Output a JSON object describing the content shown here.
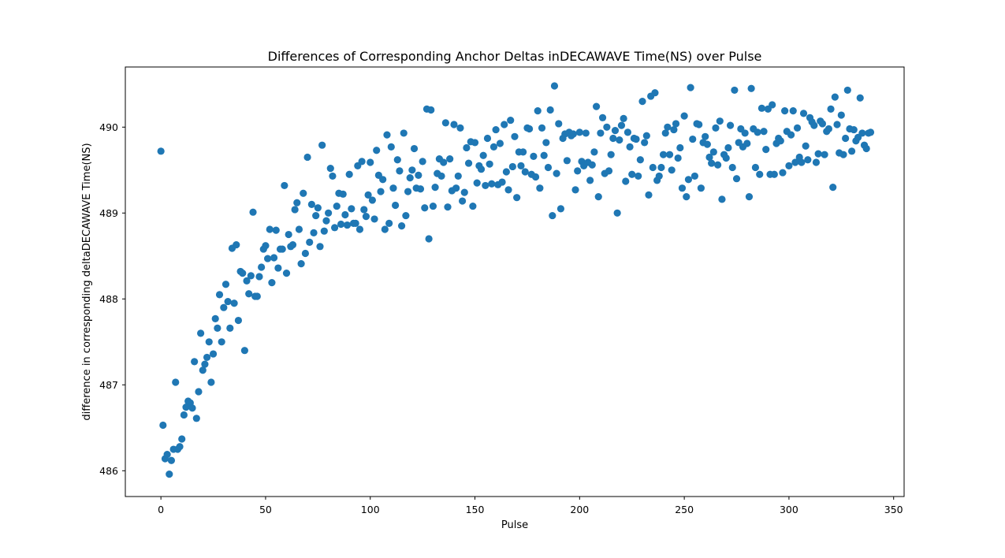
{
  "chart_data": {
    "type": "scatter",
    "title": "Differences of Corresponding Anchor Deltas inDECAWAVE Time(NS) over Pulse",
    "xlabel": "Pulse",
    "ylabel": "difference in corresponding deltaDECAWAVE Time(NS)",
    "xlim": [
      -17,
      355
    ],
    "ylim": [
      485.7,
      490.7
    ],
    "xticks": [
      0,
      50,
      100,
      150,
      200,
      250,
      300,
      350
    ],
    "yticks": [
      486,
      487,
      488,
      489,
      490
    ],
    "xtick_labels": [
      "0",
      "50",
      "100",
      "150",
      "200",
      "250",
      "300",
      "350"
    ],
    "ytick_labels": [
      "486",
      "487",
      "488",
      "489",
      "490"
    ],
    "grid": false,
    "legend": "none",
    "marker_color": "#1f77b4",
    "series": [
      {
        "x": [
          0,
          1,
          2,
          3,
          4,
          5,
          6,
          7,
          8,
          9,
          10,
          11,
          12,
          13,
          14,
          15,
          16,
          17,
          18,
          19,
          20,
          21,
          22,
          23,
          24,
          25,
          26,
          27,
          28,
          29,
          30,
          31,
          32,
          33,
          34,
          35,
          36,
          37,
          38,
          39,
          40,
          41,
          42,
          43,
          44,
          45,
          46,
          47,
          48,
          49,
          50,
          51,
          52,
          53,
          54,
          55,
          56,
          57,
          58,
          59,
          60,
          61,
          62,
          63,
          64,
          65,
          66,
          67,
          68,
          69,
          70,
          71,
          72,
          73,
          74,
          75,
          76,
          77,
          78,
          79,
          80,
          81,
          82,
          83,
          84,
          85,
          86,
          87,
          88,
          89,
          90,
          91,
          92,
          93,
          94,
          95,
          96,
          97,
          98,
          99,
          100,
          101,
          102,
          103,
          104,
          105,
          106,
          107,
          108,
          109,
          110,
          111,
          112,
          113,
          114,
          115,
          116,
          117,
          118,
          119,
          120,
          121,
          122,
          123,
          124,
          125,
          126,
          127,
          128,
          129,
          130,
          131,
          132,
          133,
          134,
          135,
          136,
          137,
          138,
          139,
          140,
          141,
          142,
          143,
          144,
          145,
          146,
          147,
          148,
          149,
          150,
          151,
          152,
          153,
          154,
          155,
          156,
          157,
          158,
          159,
          160,
          161,
          162,
          163,
          164,
          165,
          166,
          167,
          168,
          169,
          170,
          171,
          172,
          173,
          174,
          175,
          176,
          177,
          178,
          179,
          180,
          181,
          182,
          183,
          184,
          185,
          186,
          187,
          188,
          189,
          190,
          191,
          192,
          193,
          194,
          195,
          196,
          197,
          198,
          199,
          200,
          201,
          202,
          203,
          204,
          205,
          206,
          207,
          208,
          209,
          210,
          211,
          212,
          213,
          214,
          215,
          216,
          217,
          218,
          219,
          220,
          221,
          222,
          223,
          224,
          225,
          226,
          227,
          228,
          229,
          230,
          231,
          232,
          233,
          234,
          235,
          236,
          237,
          238,
          239,
          240,
          241,
          242,
          243,
          244,
          245,
          246,
          247,
          248,
          249,
          250,
          251,
          252,
          253,
          254,
          255,
          256,
          257,
          258,
          259,
          260,
          261,
          262,
          263,
          264,
          265,
          266,
          267,
          268,
          269,
          270,
          271,
          272,
          273,
          274,
          275,
          276,
          277,
          278,
          279,
          280,
          281,
          282,
          283,
          284,
          285,
          286,
          287,
          288,
          289,
          290,
          291,
          292,
          293,
          294,
          295,
          296,
          297,
          298,
          299,
          300,
          301,
          302,
          303,
          304,
          305,
          306,
          307,
          308,
          309,
          310,
          311,
          312,
          313,
          314,
          315,
          316,
          317,
          318,
          319,
          320,
          321,
          322,
          323,
          324,
          325,
          326,
          327,
          328,
          329,
          330,
          331,
          332,
          333,
          334,
          335,
          336,
          337,
          338,
          339
        ],
        "y": [
          489.72,
          486.53,
          486.14,
          486.19,
          485.96,
          486.12,
          486.25,
          487.03,
          486.25,
          486.28,
          486.37,
          486.65,
          486.74,
          486.81,
          486.79,
          486.73,
          487.27,
          486.61,
          486.92,
          487.6,
          487.17,
          487.24,
          487.32,
          487.5,
          487.03,
          487.36,
          487.77,
          487.66,
          488.05,
          487.5,
          487.9,
          488.17,
          487.97,
          487.66,
          488.59,
          487.95,
          488.63,
          487.75,
          488.32,
          488.3,
          487.4,
          488.21,
          488.06,
          488.27,
          489.01,
          488.03,
          488.03,
          488.26,
          488.37,
          488.58,
          488.62,
          488.47,
          488.81,
          488.19,
          488.48,
          488.8,
          488.36,
          488.58,
          488.58,
          489.32,
          488.3,
          488.75,
          488.61,
          488.63,
          489.04,
          489.12,
          488.81,
          488.41,
          489.23,
          488.53,
          489.65,
          488.66,
          489.1,
          488.77,
          488.97,
          489.06,
          488.61,
          489.79,
          488.79,
          488.91,
          489.0,
          489.52,
          489.43,
          488.83,
          489.08,
          489.23,
          488.87,
          489.22,
          488.98,
          488.86,
          489.45,
          489.05,
          488.88,
          488.88,
          489.55,
          488.81,
          489.6,
          489.04,
          488.96,
          489.21,
          489.59,
          489.15,
          488.93,
          489.73,
          489.44,
          489.25,
          489.39,
          488.81,
          489.91,
          488.88,
          489.77,
          489.29,
          489.09,
          489.62,
          489.49,
          488.85,
          489.93,
          488.97,
          489.25,
          489.41,
          489.5,
          489.75,
          489.29,
          489.44,
          489.28,
          489.6,
          489.06,
          490.21,
          488.7,
          490.2,
          489.08,
          489.3,
          489.46,
          489.63,
          489.43,
          489.59,
          490.05,
          489.07,
          489.63,
          489.26,
          490.03,
          489.29,
          489.43,
          489.99,
          489.14,
          489.24,
          489.76,
          489.58,
          489.83,
          489.08,
          489.82,
          489.35,
          489.55,
          489.51,
          489.67,
          489.32,
          489.87,
          489.57,
          489.34,
          489.77,
          489.97,
          489.33,
          489.81,
          489.36,
          490.03,
          489.48,
          489.27,
          490.08,
          489.54,
          489.89,
          489.18,
          489.71,
          489.55,
          489.71,
          489.48,
          489.99,
          489.98,
          489.45,
          489.66,
          489.42,
          490.19,
          489.29,
          489.99,
          489.67,
          489.82,
          489.53,
          490.2,
          488.97,
          490.48,
          489.46,
          490.04,
          489.05,
          489.87,
          489.92,
          489.61,
          489.94,
          489.9,
          489.92,
          489.27,
          489.49,
          489.94,
          489.6,
          489.55,
          489.93,
          489.59,
          489.38,
          489.56,
          489.71,
          490.24,
          489.19,
          489.93,
          490.11,
          489.46,
          490.0,
          489.49,
          489.68,
          489.87,
          489.96,
          489.0,
          489.85,
          490.02,
          490.1,
          489.37,
          489.94,
          489.77,
          489.45,
          489.87,
          489.86,
          489.43,
          489.62,
          490.3,
          489.82,
          489.9,
          489.21,
          490.36,
          489.53,
          490.4,
          489.38,
          489.43,
          489.53,
          489.68,
          489.93,
          490.0,
          489.68,
          489.5,
          489.97,
          490.04,
          489.64,
          489.76,
          489.29,
          490.13,
          489.19,
          489.39,
          490.46,
          489.86,
          489.43,
          490.04,
          490.03,
          489.29,
          489.82,
          489.89,
          489.8,
          489.65,
          489.58,
          489.71,
          489.99,
          489.56,
          490.07,
          489.16,
          489.68,
          489.64,
          489.76,
          490.02,
          489.53,
          490.43,
          489.4,
          489.82,
          489.98,
          489.77,
          489.93,
          489.81,
          489.19,
          490.45,
          489.98,
          489.53,
          489.94,
          489.45,
          490.22,
          489.95,
          489.74,
          490.21,
          489.45,
          490.26,
          489.45,
          489.81,
          489.87,
          489.84,
          489.47,
          490.19,
          489.95,
          489.55,
          489.91,
          490.19,
          489.59,
          489.99,
          489.65,
          489.59,
          490.16,
          489.78,
          489.62,
          490.11,
          490.06,
          490.02,
          489.59,
          489.69,
          490.07,
          490.04,
          489.68,
          489.95,
          489.98,
          490.21,
          489.3,
          490.35,
          490.03,
          489.7,
          490.14,
          489.68,
          489.87,
          490.43,
          489.98,
          489.72,
          489.97,
          489.84,
          489.88,
          490.34,
          489.93,
          489.79,
          489.75,
          489.93,
          489.94
        ]
      }
    ]
  }
}
